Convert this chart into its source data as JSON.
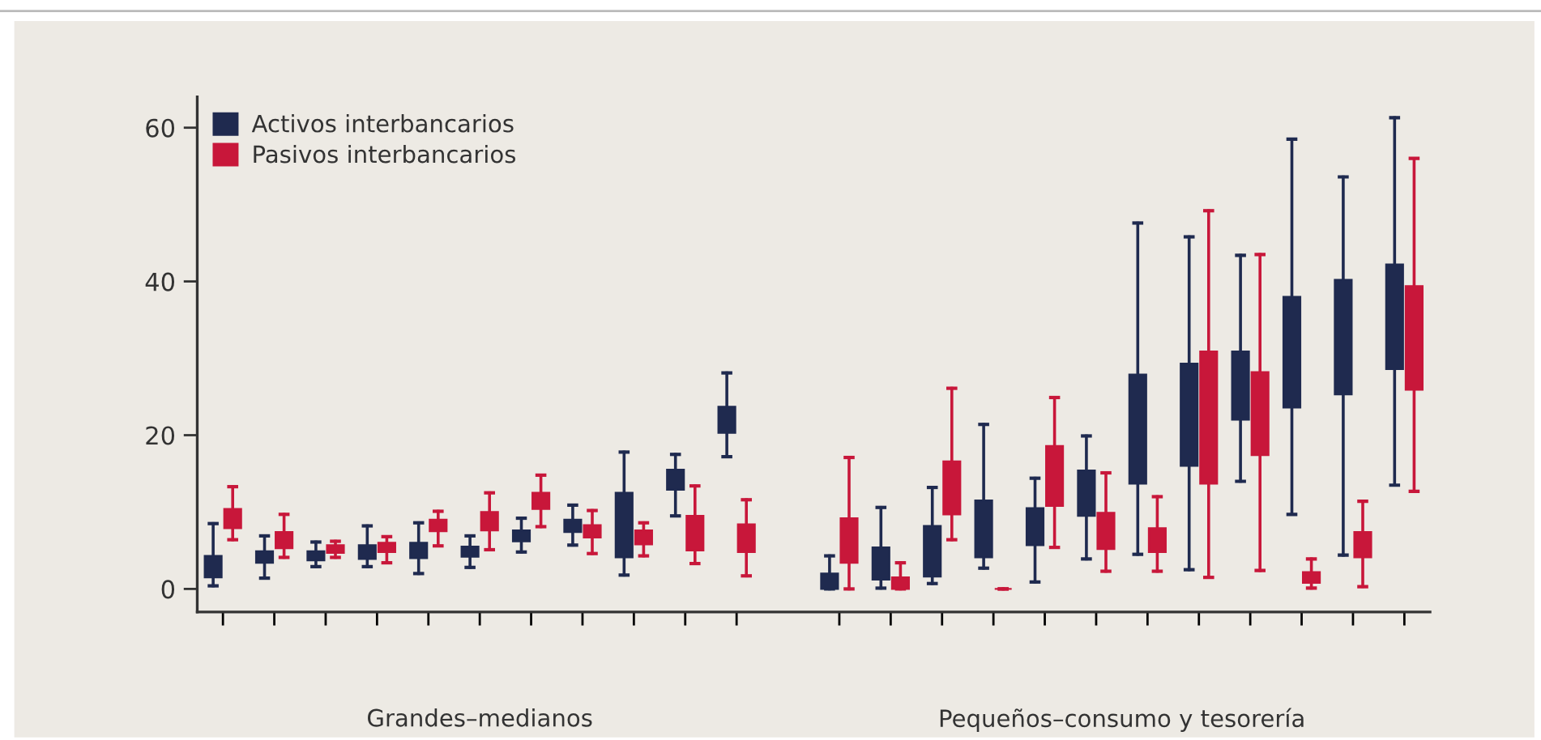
{
  "chart_data": {
    "type": "box",
    "categories": [
      null,
      null,
      null,
      null,
      null,
      null,
      null,
      null,
      null,
      null,
      null,
      null,
      null,
      null,
      null,
      null,
      null,
      null,
      null,
      null,
      null,
      null,
      null,
      null
    ],
    "series": [
      {
        "name": "Activos interbancarios",
        "color": "#1f2a4f",
        "boxes": [
          {
            "low": 0.4,
            "q1": 1.5,
            "q3": 4.3,
            "high": 8.5
          },
          {
            "low": 1.4,
            "q1": 3.4,
            "q3": 4.9,
            "high": 6.9
          },
          {
            "low": 2.9,
            "q1": 3.7,
            "q3": 4.9,
            "high": 6.1
          },
          {
            "low": 2.9,
            "q1": 3.9,
            "q3": 5.7,
            "high": 8.2
          },
          {
            "low": 2.0,
            "q1": 4.0,
            "q3": 6.0,
            "high": 8.6
          },
          {
            "low": 2.8,
            "q1": 4.2,
            "q3": 5.5,
            "high": 6.9
          },
          {
            "low": 4.8,
            "q1": 6.2,
            "q3": 7.6,
            "high": 9.2
          },
          {
            "low": 5.7,
            "q1": 7.4,
            "q3": 9.0,
            "high": 10.9
          },
          {
            "low": 1.8,
            "q1": 4.1,
            "q3": 12.5,
            "high": 17.8
          },
          {
            "low": 9.5,
            "q1": 12.9,
            "q3": 15.5,
            "high": 17.5
          },
          {
            "low": 17.2,
            "q1": 20.3,
            "q3": 23.7,
            "high": 28.1
          },
          null,
          {
            "low": 0,
            "q1": 0,
            "q3": 2.0,
            "high": 4.3
          },
          {
            "low": 0.1,
            "q1": 1.2,
            "q3": 5.4,
            "high": 10.6
          },
          {
            "low": 0.7,
            "q1": 1.6,
            "q3": 8.2,
            "high": 13.2
          },
          {
            "low": 2.7,
            "q1": 4.1,
            "q3": 11.5,
            "high": 21.4
          },
          {
            "low": 0.9,
            "q1": 5.7,
            "q3": 10.5,
            "high": 14.4
          },
          {
            "low": 3.9,
            "q1": 9.5,
            "q3": 15.4,
            "high": 19.9
          },
          {
            "low": 4.5,
            "q1": 13.7,
            "q3": 27.9,
            "high": 47.6
          },
          {
            "low": 2.5,
            "q1": 16.0,
            "q3": 29.3,
            "high": 45.8
          },
          {
            "low": 14.0,
            "q1": 22.0,
            "q3": 30.9,
            "high": 43.4
          },
          {
            "low": 9.7,
            "q1": 23.6,
            "q3": 38.0,
            "high": 58.5
          },
          {
            "low": 4.4,
            "q1": 25.3,
            "q3": 40.2,
            "high": 53.6
          },
          {
            "low": 13.5,
            "q1": 28.6,
            "q3": 42.2,
            "high": 61.3
          }
        ]
      },
      {
        "name": "Pasivos interbancarios",
        "color": "#c8173a",
        "boxes": [
          {
            "low": 6.4,
            "q1": 7.9,
            "q3": 10.4,
            "high": 13.3
          },
          {
            "low": 4.1,
            "q1": 5.3,
            "q3": 7.4,
            "high": 9.7
          },
          {
            "low": 4.1,
            "q1": 4.7,
            "q3": 5.7,
            "high": 6.2
          },
          {
            "low": 3.4,
            "q1": 4.8,
            "q3": 6.0,
            "high": 6.8
          },
          {
            "low": 5.6,
            "q1": 7.5,
            "q3": 9.0,
            "high": 10.1
          },
          {
            "low": 5.1,
            "q1": 7.6,
            "q3": 10.0,
            "high": 12.5
          },
          {
            "low": 8.1,
            "q1": 10.4,
            "q3": 12.5,
            "high": 14.8
          },
          {
            "low": 4.6,
            "q1": 6.7,
            "q3": 8.3,
            "high": 10.2
          },
          {
            "low": 4.3,
            "q1": 5.8,
            "q3": 7.6,
            "high": 8.6
          },
          {
            "low": 3.3,
            "q1": 5.0,
            "q3": 9.5,
            "high": 13.4
          },
          {
            "low": 1.7,
            "q1": 4.8,
            "q3": 8.4,
            "high": 11.6
          },
          null,
          {
            "low": 0,
            "q1": 3.4,
            "q3": 9.2,
            "high": 17.1
          },
          {
            "low": 0,
            "q1": 0,
            "q3": 1.5,
            "high": 3.4
          },
          {
            "low": 6.4,
            "q1": 9.7,
            "q3": 16.6,
            "high": 26.1
          },
          {
            "low": 0,
            "q1": 0,
            "q3": 0,
            "high": 0
          },
          {
            "low": 5.4,
            "q1": 10.8,
            "q3": 18.6,
            "high": 24.9
          },
          {
            "low": 2.3,
            "q1": 5.2,
            "q3": 9.9,
            "high": 15.1
          },
          {
            "low": 2.3,
            "q1": 4.8,
            "q3": 7.9,
            "high": 12.0
          },
          {
            "low": 1.5,
            "q1": 13.7,
            "q3": 30.9,
            "high": 49.2
          },
          {
            "low": 2.4,
            "q1": 17.4,
            "q3": 28.2,
            "high": 43.5
          },
          {
            "low": 0.1,
            "q1": 0.8,
            "q3": 2.2,
            "high": 3.9
          },
          {
            "low": 0.3,
            "q1": 4.1,
            "q3": 7.4,
            "high": 11.4
          },
          {
            "low": 12.7,
            "q1": 25.9,
            "q3": 39.4,
            "high": 56.0
          }
        ]
      }
    ],
    "ylim": [
      -3,
      64
    ],
    "yticks": [
      0,
      20,
      40,
      60
    ],
    "tick_labels": "y",
    "grid": false,
    "legend": "top left",
    "annotations": [
      "Grandes–medianos",
      "Pequeños–consumo y tesorería"
    ]
  }
}
